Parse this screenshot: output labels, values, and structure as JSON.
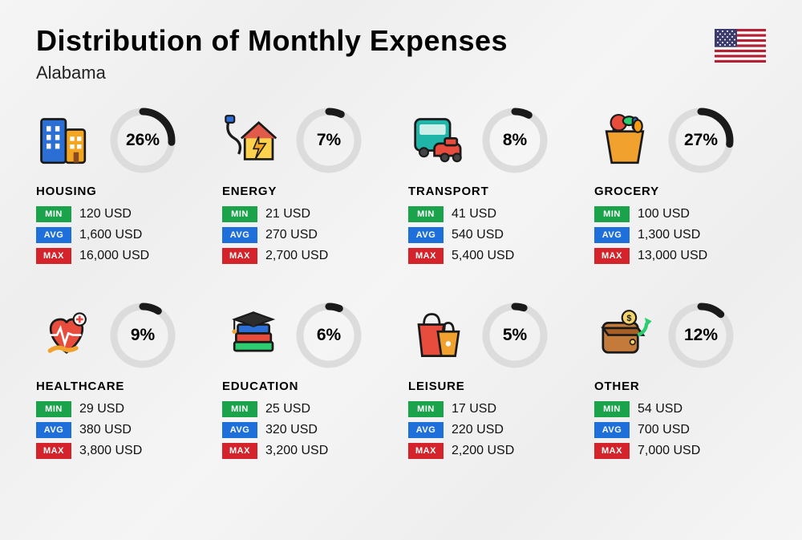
{
  "header": {
    "title": "Distribution of Monthly Expenses",
    "subtitle": "Alabama"
  },
  "flag": {
    "stripes_red": "#b22234",
    "stripes_white": "#ffffff",
    "canton": "#3c3b6e"
  },
  "donut": {
    "bg_color": "#dcdcdc",
    "fg_color": "#1a1a1a",
    "stroke_width": 9,
    "radius": 36
  },
  "tags": {
    "min": {
      "label": "MIN",
      "bg": "#1aa34a"
    },
    "avg": {
      "label": "AVG",
      "bg": "#1e6fd9"
    },
    "max": {
      "label": "MAX",
      "bg": "#d4232a"
    }
  },
  "cards": [
    {
      "name": "HOUSING",
      "pct": 26,
      "pct_label": "26%",
      "min": "120 USD",
      "avg": "1,600 USD",
      "max": "16,000 USD",
      "icon": "buildings"
    },
    {
      "name": "ENERGY",
      "pct": 7,
      "pct_label": "7%",
      "min": "21 USD",
      "avg": "270 USD",
      "max": "2,700 USD",
      "icon": "energy"
    },
    {
      "name": "TRANSPORT",
      "pct": 8,
      "pct_label": "8%",
      "min": "41 USD",
      "avg": "540 USD",
      "max": "5,400 USD",
      "icon": "transport"
    },
    {
      "name": "GROCERY",
      "pct": 27,
      "pct_label": "27%",
      "min": "100 USD",
      "avg": "1,300 USD",
      "max": "13,000 USD",
      "icon": "grocery"
    },
    {
      "name": "HEALTHCARE",
      "pct": 9,
      "pct_label": "9%",
      "min": "29 USD",
      "avg": "380 USD",
      "max": "3,800 USD",
      "icon": "healthcare"
    },
    {
      "name": "EDUCATION",
      "pct": 6,
      "pct_label": "6%",
      "min": "25 USD",
      "avg": "320 USD",
      "max": "3,200 USD",
      "icon": "education"
    },
    {
      "name": "LEISURE",
      "pct": 5,
      "pct_label": "5%",
      "min": "17 USD",
      "avg": "220 USD",
      "max": "2,200 USD",
      "icon": "leisure"
    },
    {
      "name": "OTHER",
      "pct": 12,
      "pct_label": "12%",
      "min": "54 USD",
      "avg": "700 USD",
      "max": "7,000 USD",
      "icon": "other"
    }
  ]
}
